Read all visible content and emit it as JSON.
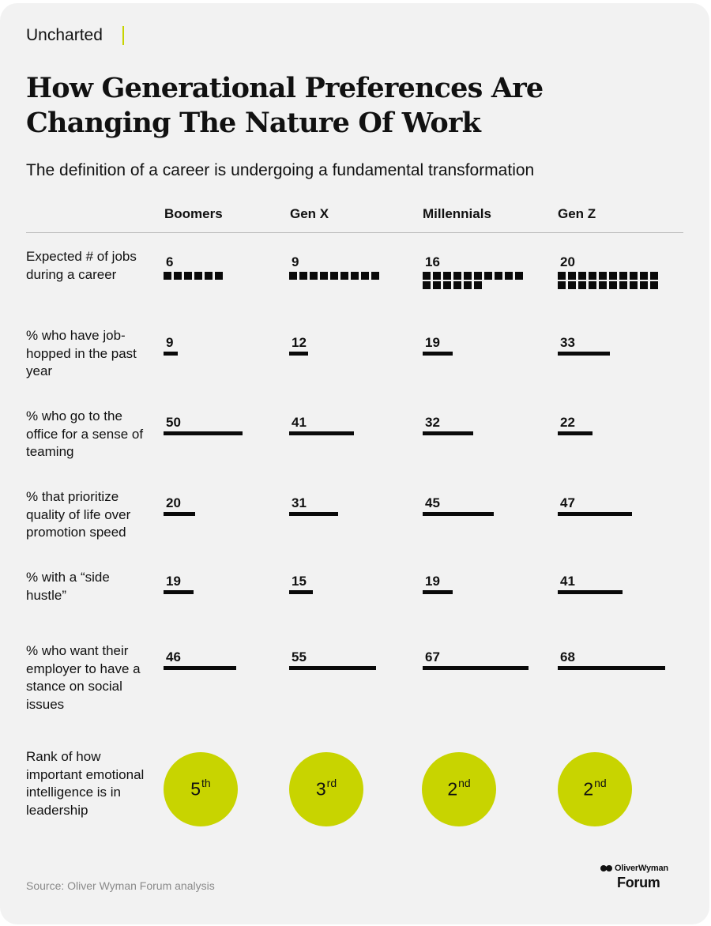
{
  "header": {
    "brand": "Uncharted",
    "title": "How Generational Preferences Are Changing The Nature Of Work",
    "subtitle": "The definition of a career is undergoing a fundamental transformation"
  },
  "chart_data": {
    "type": "table",
    "columns": [
      "Boomers",
      "Gen X",
      "Millennials",
      "Gen Z"
    ],
    "rows": [
      {
        "label": "Expected # of jobs during a career",
        "kind": "squares",
        "values": [
          6,
          9,
          16,
          20
        ]
      },
      {
        "label": "% who have job-hopped in the past year",
        "kind": "bar",
        "values": [
          9,
          12,
          19,
          33
        ]
      },
      {
        "label": "% who go to the office for a sense of teaming",
        "kind": "bar",
        "values": [
          50,
          41,
          32,
          22
        ]
      },
      {
        "label": "% that prioritize quality of life over promotion speed",
        "kind": "bar",
        "values": [
          20,
          31,
          45,
          47
        ]
      },
      {
        "label": "% with a “side hustle”",
        "kind": "bar",
        "values": [
          19,
          15,
          19,
          41
        ]
      },
      {
        "label": "% who want their employer to have a stance on social issues",
        "kind": "bar",
        "values": [
          46,
          55,
          67,
          68
        ]
      },
      {
        "label": "Rank of how important emotional intelligence is in leadership",
        "kind": "rank",
        "values": [
          5,
          3,
          2,
          2
        ],
        "suffixes": [
          "th",
          "rd",
          "nd",
          "nd"
        ]
      }
    ]
  },
  "footer": {
    "source": "Source: Oliver Wyman Forum analysis",
    "logo_name": "OliverWyman",
    "logo_sub": "Forum"
  },
  "colors": {
    "accent": "#c8d400",
    "ink": "#0a0a0a",
    "background": "#f2f2f2"
  }
}
